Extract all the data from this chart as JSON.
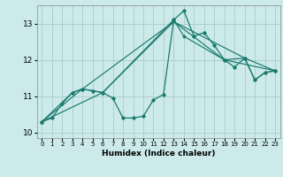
{
  "title": "",
  "xlabel": "Humidex (Indice chaleur)",
  "bg_color": "#cceaea",
  "grid_color": "#aacccc",
  "line_color": "#1a7a6e",
  "xlim": [
    -0.5,
    23.5
  ],
  "ylim": [
    9.85,
    13.5
  ],
  "yticks": [
    10,
    11,
    12,
    13
  ],
  "xticks": [
    0,
    1,
    2,
    3,
    4,
    5,
    6,
    7,
    8,
    9,
    10,
    11,
    12,
    13,
    14,
    15,
    16,
    17,
    18,
    19,
    20,
    21,
    22,
    23
  ],
  "series": [
    {
      "x": [
        0,
        1,
        2,
        3,
        4,
        5,
        6,
        7,
        8,
        9,
        10,
        11,
        12,
        13,
        14,
        15,
        16,
        17,
        18,
        19,
        20,
        21,
        22,
        23
      ],
      "y": [
        10.3,
        10.4,
        10.8,
        11.1,
        11.2,
        11.15,
        11.1,
        10.95,
        10.4,
        10.4,
        10.45,
        10.9,
        11.05,
        13.1,
        13.35,
        12.65,
        12.75,
        12.4,
        12.0,
        11.8,
        12.05,
        11.45,
        11.65,
        11.7
      ]
    },
    {
      "x": [
        0,
        3,
        4,
        5,
        6,
        13,
        14,
        18,
        20,
        21,
        22,
        23
      ],
      "y": [
        10.3,
        11.1,
        11.2,
        11.15,
        11.1,
        13.1,
        12.65,
        12.0,
        12.05,
        11.45,
        11.65,
        11.7
      ]
    },
    {
      "x": [
        0,
        6,
        13,
        20,
        23
      ],
      "y": [
        10.3,
        11.1,
        13.05,
        12.05,
        11.7
      ]
    },
    {
      "x": [
        0,
        4,
        13,
        18,
        23
      ],
      "y": [
        10.3,
        11.2,
        13.05,
        12.0,
        11.7
      ]
    }
  ]
}
